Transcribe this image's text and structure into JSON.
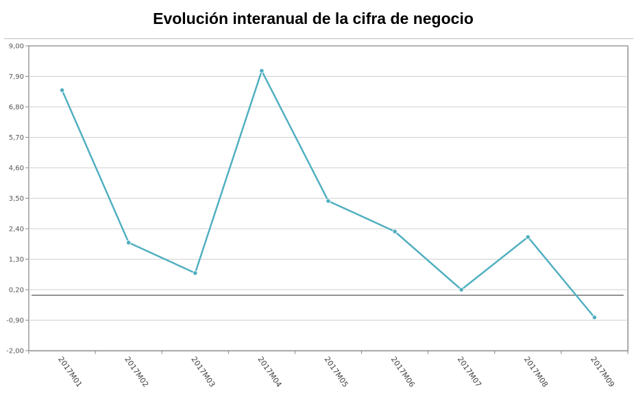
{
  "chart_data": {
    "type": "line",
    "title": "Evolución interanual de la cifra de negocio",
    "xlabel": "",
    "ylabel": "",
    "categories": [
      "2017M01",
      "2017M02",
      "2017M03",
      "2017M04",
      "2017M05",
      "2017M06",
      "2017M07",
      "2017M08",
      "2017M09"
    ],
    "series": [
      {
        "values": [
          7.4,
          1.9,
          0.8,
          8.1,
          3.4,
          2.3,
          0.2,
          2.1,
          -0.8
        ]
      }
    ],
    "ylim": [
      -2.0,
      9.0
    ],
    "yticks": [
      "9,00",
      "7,90",
      "6,80",
      "5,70",
      "4,60",
      "3,50",
      "2,40",
      "1,30",
      "0,20",
      "-0,90",
      "-2,00"
    ],
    "reference_line": 0,
    "grid": "horizontal",
    "colors": {
      "line": "#4fafc0",
      "grid": "#cfcfcf",
      "axis": "#888888",
      "reference": "#555555"
    }
  }
}
